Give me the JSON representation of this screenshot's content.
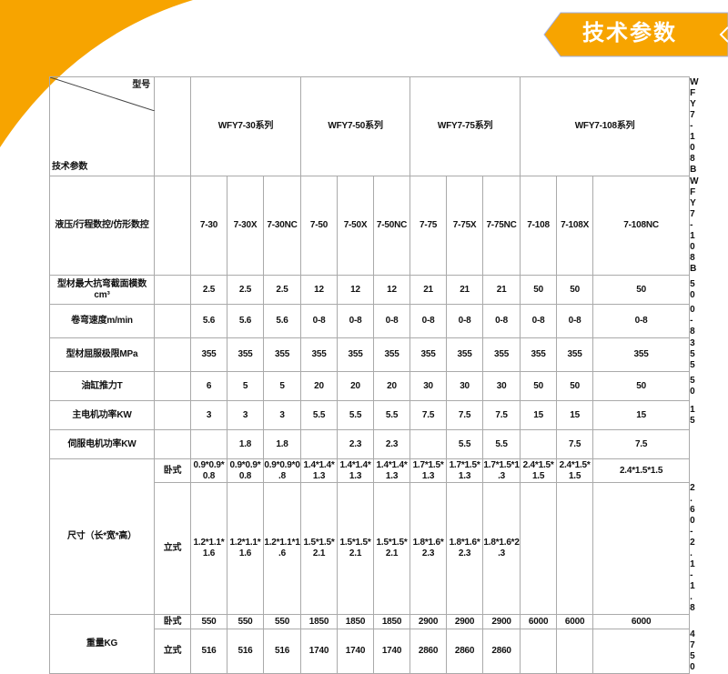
{
  "colors": {
    "accent": "#f7a400",
    "banner_text": "#ffffff",
    "grid": "#aaaaaa"
  },
  "header": {
    "title": "技术参数"
  },
  "table": {
    "corner_top": "型号",
    "corner_bottom": "技术参数",
    "series": [
      {
        "label": "WFY7-30系列",
        "span": 3
      },
      {
        "label": "WFY7-50系列",
        "span": 3
      },
      {
        "label": "WFY7-75系列",
        "span": 3
      },
      {
        "label": "WFY7-108系列",
        "span": 3
      },
      {
        "label": "WFY7-108B",
        "span": 1
      }
    ],
    "model_row": {
      "label": "液压/行程数控/仿形数控",
      "values": [
        "7-30",
        "7-30X",
        "7-30NC",
        "7-50",
        "7-50X",
        "7-50NC",
        "7-75",
        "7-75X",
        "7-75NC",
        "7-108",
        "7-108X",
        "7-108NC",
        "WFY7-108B"
      ]
    },
    "rows": [
      {
        "label": "型材最大抗弯截面模数cm³",
        "values": [
          "2.5",
          "2.5",
          "2.5",
          "12",
          "12",
          "12",
          "21",
          "21",
          "21",
          "50",
          "50",
          "50",
          "50"
        ]
      },
      {
        "label": "卷弯速度m/min",
        "values": [
          "5.6",
          "5.6",
          "5.6",
          "0-8",
          "0-8",
          "0-8",
          "0-8",
          "0-8",
          "0-8",
          "0-8",
          "0-8",
          "0-8",
          "0-8"
        ]
      },
      {
        "label": "型材屈服极限MPa",
        "values": [
          "355",
          "355",
          "355",
          "355",
          "355",
          "355",
          "355",
          "355",
          "355",
          "355",
          "355",
          "355",
          "355"
        ]
      },
      {
        "label": "油缸推力T",
        "values": [
          "6",
          "5",
          "5",
          "20",
          "20",
          "20",
          "30",
          "30",
          "30",
          "50",
          "50",
          "50",
          "50"
        ]
      },
      {
        "label": "主电机功率KW",
        "values": [
          "3",
          "3",
          "3",
          "5.5",
          "5.5",
          "5.5",
          "7.5",
          "7.5",
          "7.5",
          "15",
          "15",
          "15",
          "15"
        ]
      },
      {
        "label": "伺服电机功率KW",
        "values": [
          "",
          "1.8",
          "1.8",
          "",
          "2.3",
          "2.3",
          "",
          "5.5",
          "5.5",
          "",
          "7.5",
          "7.5",
          ""
        ]
      }
    ],
    "size": {
      "label": "尺寸（长*宽*高）",
      "sub": [
        {
          "label": "卧式",
          "values": [
            "0.9*0.9*0.8",
            "0.9*0.9*0.8",
            "0.9*0.9*0.8",
            "1.4*1.4*1.3",
            "1.4*1.4*1.3",
            "1.4*1.4*1.3",
            "1.7*1.5*1.3",
            "1.7*1.5*1.3",
            "1.7*1.5*1.3",
            "2.4*1.5*1.5",
            "2.4*1.5*1.5",
            "2.4*1.5*1.5",
            ""
          ]
        },
        {
          "label": "立式",
          "values": [
            "1.2*1.1*1.6",
            "1.2*1.1*1.6",
            "1.2*1.1*1.6",
            "1.5*1.5*2.1",
            "1.5*1.5*2.1",
            "1.5*1.5*2.1",
            "1.8*1.6*2.3",
            "1.8*1.6*2.3",
            "1.8*1.6*2.3",
            "",
            "",
            "",
            "2.60-2.1-1.8"
          ]
        }
      ]
    },
    "weight": {
      "label": "重量KG",
      "sub": [
        {
          "label": "卧式",
          "values": [
            "550",
            "550",
            "550",
            "1850",
            "1850",
            "1850",
            "2900",
            "2900",
            "2900",
            "6000",
            "6000",
            "6000",
            ""
          ]
        },
        {
          "label": "立式",
          "values": [
            "516",
            "516",
            "516",
            "1740",
            "1740",
            "1740",
            "2860",
            "2860",
            "2860",
            "",
            "",
            "",
            "4750"
          ]
        }
      ]
    }
  }
}
